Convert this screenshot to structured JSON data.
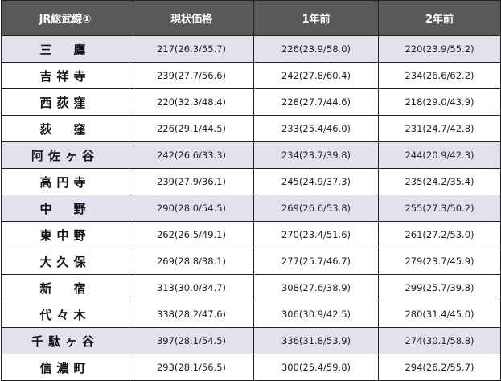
{
  "table": {
    "headers": [
      "JR総武線①",
      "現状価格",
      "1年前",
      "2年前"
    ],
    "colors": {
      "header_bg": "#595959",
      "header_text": "#ffffff",
      "highlight_row_bg": "#e4e1ef"
    },
    "rows": [
      {
        "station": "三　鷹",
        "highlight": true,
        "current": "217(26.3/55.7)",
        "one_year_ago": "226(23.9/58.0)",
        "two_years_ago": "220(23.9/55.2)"
      },
      {
        "station": "吉祥寺",
        "highlight": false,
        "current": "239(27.7/56.6)",
        "one_year_ago": "242(27.8/60.4)",
        "two_years_ago": "234(26.6/62.2)"
      },
      {
        "station": "西荻窪",
        "highlight": false,
        "current": "220(32.3/48.4)",
        "one_year_ago": "228(27.7/44.6)",
        "two_years_ago": "218(29.0/43.9)"
      },
      {
        "station": "荻　窪",
        "highlight": false,
        "current": "226(29.1/44.5)",
        "one_year_ago": "233(25.4/46.0)",
        "two_years_ago": "231(24.7/42.8)"
      },
      {
        "station": "阿佐ヶ谷",
        "highlight": true,
        "current": "242(26.6/33.3)",
        "one_year_ago": "234(23.7/39.8)",
        "two_years_ago": "244(20.9/42.3)"
      },
      {
        "station": "高円寺",
        "highlight": false,
        "current": "239(27.9/36.1)",
        "one_year_ago": "245(24.9/37.3)",
        "two_years_ago": "235(24.2/35.4)"
      },
      {
        "station": "中　野",
        "highlight": true,
        "current": "290(28.0/54.5)",
        "one_year_ago": "269(26.6/53.8)",
        "two_years_ago": "255(27.3/50.2)"
      },
      {
        "station": "東中野",
        "highlight": false,
        "current": "262(26.5/49.1)",
        "one_year_ago": "270(23.4/51.6)",
        "two_years_ago": "261(27.2/53.0)"
      },
      {
        "station": "大久保",
        "highlight": false,
        "current": "269(28.8/38.1)",
        "one_year_ago": "277(25.7/46.7)",
        "two_years_ago": "279(23.7/45.9)"
      },
      {
        "station": "新　宿",
        "highlight": false,
        "current": "313(30.0/34.7)",
        "one_year_ago": "308(27.6/38.9)",
        "two_years_ago": "299(25.7/39.8)"
      },
      {
        "station": "代々木",
        "highlight": false,
        "current": "338(28.2/47.6)",
        "one_year_ago": "306(30.9/42.5)",
        "two_years_ago": "280(31.4/45.0)"
      },
      {
        "station": "千駄ヶ谷",
        "highlight": true,
        "current": "397(28.1/54.5)",
        "one_year_ago": "336(31.8/53.9)",
        "two_years_ago": "274(30.1/58.8)"
      },
      {
        "station": "信濃町",
        "highlight": false,
        "current": "293(28.1/56.5)",
        "one_year_ago": "300(25.4/59.8)",
        "two_years_ago": "294(26.2/55.7)"
      }
    ]
  }
}
